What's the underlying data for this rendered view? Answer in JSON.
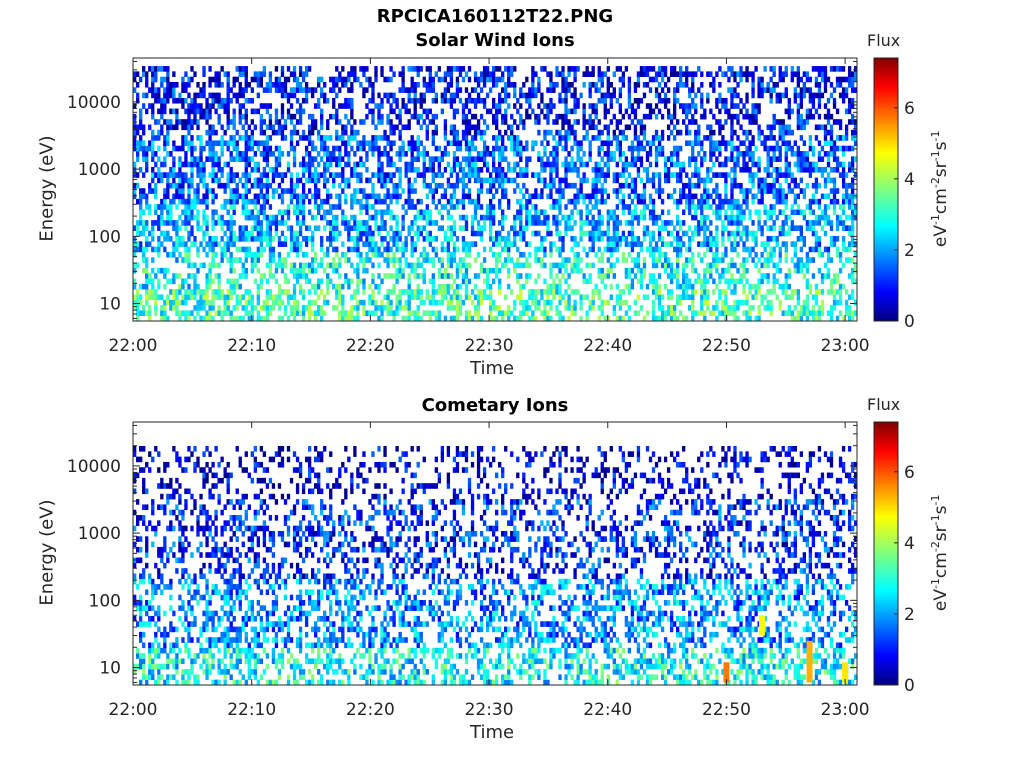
{
  "figure": {
    "title": "RPCICA160112T22.PNG"
  },
  "chart_data": [
    {
      "type": "heatmap",
      "title": "Solar Wind Ions",
      "xlabel": "Time",
      "ylabel": "Energy (eV)",
      "y_scale": "log",
      "ylim": [
        5.5,
        45000
      ],
      "xlim": [
        "22:00",
        "23:01"
      ],
      "x_ticks": [
        "22:00",
        "22:10",
        "22:20",
        "22:30",
        "22:40",
        "22:50",
        "23:00"
      ],
      "y_ticks": [
        "10",
        "100",
        "1000",
        "10000"
      ],
      "colorbar": {
        "title": "Flux",
        "label": "eV-1cm-2sr-1s-1",
        "range": [
          0,
          7.4
        ],
        "ticks": [
          "0",
          "2",
          "4",
          "6"
        ],
        "colormap": "jet"
      },
      "grid": false,
      "description_bands": [
        {
          "energy_range": [
            5.5,
            15
          ],
          "typical_flux": 3.2,
          "density": 0.55
        },
        {
          "energy_range": [
            15,
            60
          ],
          "typical_flux": 2.8,
          "density": 0.45
        },
        {
          "energy_range": [
            60,
            300
          ],
          "typical_flux": 2.2,
          "density": 0.55
        },
        {
          "energy_range": [
            300,
            3000
          ],
          "typical_flux": 1.6,
          "density": 0.55
        },
        {
          "energy_range": [
            3000,
            40000
          ],
          "typical_flux": 1.0,
          "density": 0.45
        }
      ]
    },
    {
      "type": "heatmap",
      "title": "Cometary Ions",
      "xlabel": "Time",
      "ylabel": "Energy (eV)",
      "y_scale": "log",
      "ylim": [
        5.5,
        45000
      ],
      "xlim": [
        "22:00",
        "23:01"
      ],
      "x_ticks": [
        "22:00",
        "22:10",
        "22:20",
        "22:30",
        "22:40",
        "22:50",
        "23:00"
      ],
      "y_ticks": [
        "10",
        "100",
        "1000",
        "10000"
      ],
      "colorbar": {
        "title": "Flux",
        "label": "eV-1cm-2sr-1s-1",
        "range": [
          0,
          7.4
        ],
        "ticks": [
          "0",
          "2",
          "4",
          "6"
        ],
        "colormap": "jet"
      },
      "grid": false,
      "description_bands": [
        {
          "energy_range": [
            5.5,
            20
          ],
          "typical_flux": 2.8,
          "density": 0.5
        },
        {
          "energy_range": [
            20,
            200
          ],
          "typical_flux": 2.0,
          "density": 0.45
        },
        {
          "energy_range": [
            200,
            3000
          ],
          "typical_flux": 1.2,
          "density": 0.35
        },
        {
          "energy_range": [
            3000,
            20000
          ],
          "typical_flux": 0.6,
          "density": 0.25
        }
      ],
      "highlights": [
        {
          "time": "22:50",
          "energy_range": [
            6,
            12
          ],
          "flux": 5.6
        },
        {
          "time": "22:57",
          "energy_range": [
            6,
            25
          ],
          "flux": 5.2
        },
        {
          "time": "23:00",
          "energy_range": [
            6,
            12
          ],
          "flux": 4.8
        },
        {
          "time": "22:53",
          "energy_range": [
            30,
            60
          ],
          "flux": 4.6
        }
      ]
    }
  ]
}
